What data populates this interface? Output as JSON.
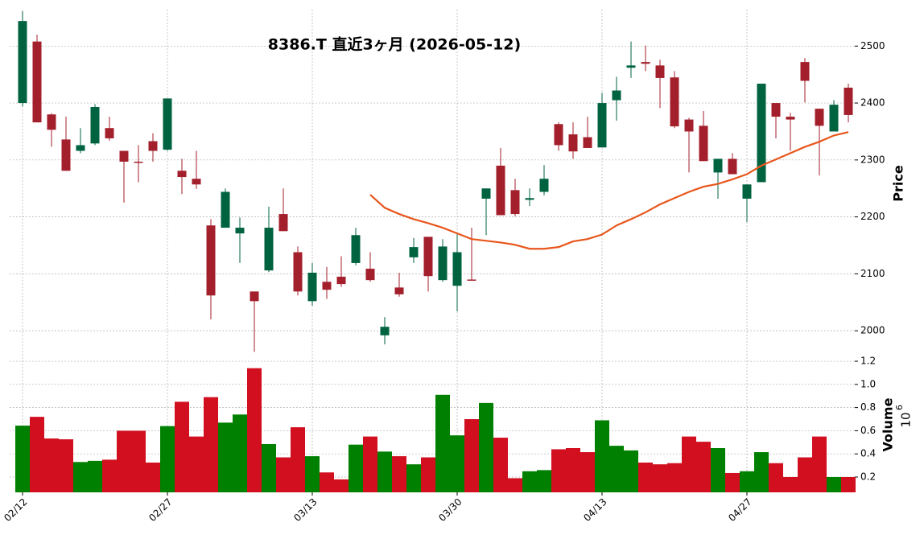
{
  "chart_data": [
    {
      "type": "candlestick",
      "title": "8386.T 直近3ヶ月 (2026-05-12)",
      "y_label": "Price",
      "categories": [
        "02/12",
        null,
        null,
        null,
        null,
        null,
        null,
        null,
        null,
        null,
        "02/27",
        null,
        null,
        null,
        null,
        null,
        null,
        null,
        null,
        null,
        "03/13",
        null,
        null,
        null,
        null,
        null,
        null,
        null,
        null,
        null,
        "03/30",
        null,
        null,
        null,
        null,
        null,
        null,
        null,
        null,
        null,
        "04/13",
        null,
        null,
        null,
        null,
        null,
        null,
        null,
        null,
        null,
        "04/27",
        null,
        null,
        null,
        null,
        null,
        null,
        null
      ],
      "open": [
        2400,
        2508,
        2380,
        2336,
        2316,
        2329,
        2356,
        2316,
        2297,
        2333,
        2318,
        2281,
        2267,
        2185,
        2181,
        2171,
        2069,
        2106,
        2205,
        2138,
        2052,
        2086,
        2095,
        2119,
        2109,
        1992,
        2076,
        2129,
        2165,
        2089,
        2079,
        2090,
        2232,
        2290,
        2247,
        2230,
        2244,
        2363,
        2345,
        2340,
        2322,
        2405,
        2462,
        2472,
        2466,
        2445,
        2371,
        2360,
        2278,
        2302,
        2232,
        2261,
        2400,
        2376,
        2472,
        2390,
        2350,
        2427
      ],
      "high": [
        2561,
        2520,
        2382,
        2376,
        2356,
        2398,
        2376,
        2316,
        2326,
        2347,
        2408,
        2302,
        2316,
        2196,
        2250,
        2199,
        2069,
        2218,
        2250,
        2148,
        2119,
        2112,
        2131,
        2181,
        2138,
        2024,
        2102,
        2163,
        2165,
        2161,
        2171,
        2181,
        2250,
        2321,
        2267,
        2250,
        2291,
        2366,
        2366,
        2376,
        2418,
        2446,
        2508,
        2501,
        2476,
        2456,
        2374,
        2386,
        2302,
        2312,
        2257,
        2434,
        2400,
        2383,
        2479,
        2390,
        2405,
        2434
      ],
      "low": [
        2394,
        2366,
        2323,
        2281,
        2312,
        2326,
        2334,
        2225,
        2261,
        2297,
        2316,
        2240,
        2249,
        2020,
        2181,
        2119,
        1963,
        2103,
        2175,
        2062,
        2044,
        2056,
        2077,
        2115,
        2086,
        1976,
        2060,
        2119,
        2069,
        2086,
        2034,
        2089,
        2168,
        2203,
        2201,
        2219,
        2238,
        2316,
        2302,
        2321,
        2322,
        2369,
        2444,
        2456,
        2391,
        2356,
        2278,
        2298,
        2232,
        2275,
        2191,
        2261,
        2338,
        2316,
        2401,
        2273,
        2350,
        2366
      ],
      "close": [
        2544,
        2366,
        2353,
        2281,
        2326,
        2393,
        2338,
        2297,
        2296,
        2316,
        2408,
        2270,
        2257,
        2062,
        2244,
        2181,
        2052,
        2181,
        2175,
        2069,
        2102,
        2072,
        2082,
        2168,
        2089,
        2007,
        2064,
        2147,
        2096,
        2148,
        2138,
        2089,
        2250,
        2203,
        2205,
        2233,
        2267,
        2326,
        2315,
        2321,
        2400,
        2422,
        2466,
        2469,
        2444,
        2359,
        2350,
        2298,
        2302,
        2275,
        2257,
        2434,
        2376,
        2371,
        2439,
        2360,
        2397,
        2379
      ],
      "up_color": "#006340",
      "down_color": "#a31f2b",
      "ma": {
        "color": "#e8561c",
        "values": [
          null,
          null,
          null,
          null,
          null,
          null,
          null,
          null,
          null,
          null,
          null,
          null,
          null,
          null,
          null,
          null,
          null,
          null,
          null,
          null,
          null,
          null,
          null,
          null,
          2239,
          2216,
          2205,
          2196,
          2189,
          2181,
          2171,
          2161,
          2158,
          2155,
          2151,
          2144,
          2144,
          2147,
          2157,
          2161,
          2169,
          2185,
          2196,
          2208,
          2222,
          2233,
          2244,
          2253,
          2258,
          2266,
          2275,
          2290,
          2301,
          2312,
          2323,
          2332,
          2343,
          2349
        ]
      },
      "ylim": [
        1955,
        2564
      ],
      "yticks": [
        2000,
        2100,
        2200,
        2300,
        2400,
        2500
      ],
      "grid": true
    },
    {
      "type": "bar",
      "y_label": "Volume",
      "y_multiplier_base": "10",
      "y_multiplier_exponent": "6",
      "values": [
        0.644,
        0.72,
        0.533,
        0.526,
        0.33,
        0.34,
        0.35,
        0.6,
        0.6,
        0.325,
        0.64,
        0.85,
        0.55,
        0.89,
        0.67,
        0.74,
        1.14,
        0.485,
        0.37,
        0.63,
        0.38,
        0.24,
        0.18,
        0.48,
        0.55,
        0.42,
        0.38,
        0.31,
        0.37,
        0.91,
        0.56,
        0.7,
        0.84,
        0.54,
        0.19,
        0.25,
        0.26,
        0.44,
        0.45,
        0.415,
        0.69,
        0.47,
        0.43,
        0.325,
        0.31,
        0.32,
        0.55,
        0.505,
        0.45,
        0.235,
        0.25,
        0.415,
        0.32,
        0.2,
        0.37,
        0.55,
        0.2,
        0.2
      ],
      "up_color": "#008000",
      "down_color": "#d10f1f",
      "ylim": [
        0.068,
        1.242
      ],
      "yticks": [
        0.2,
        0.4,
        0.6,
        {
          "value": 1,
          "label": "1.0"
        },
        0.8,
        1.2
      ],
      "grid": true
    }
  ]
}
